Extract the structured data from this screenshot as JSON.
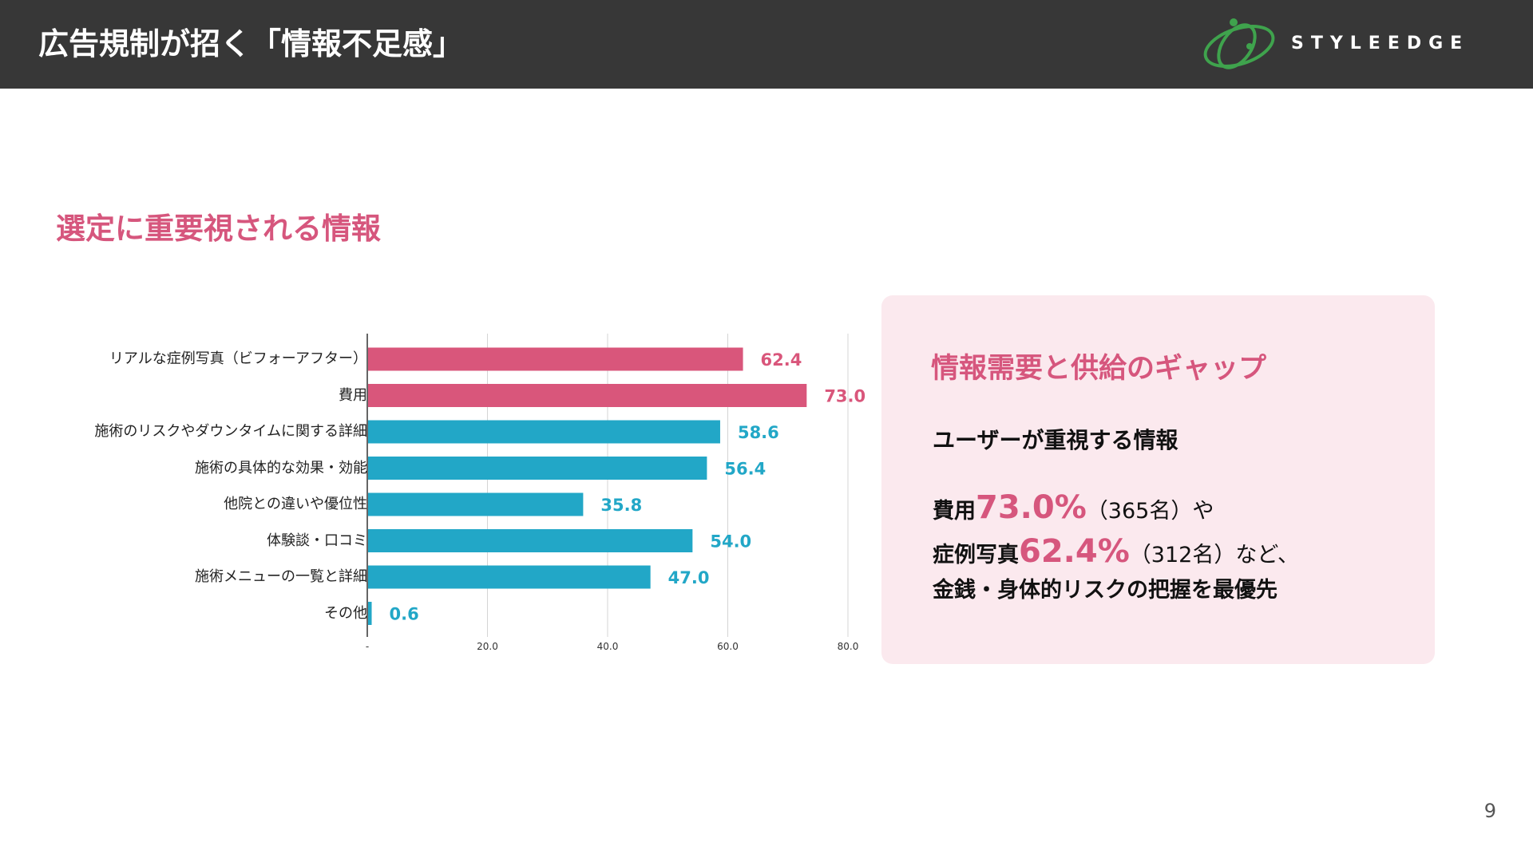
{
  "header": {
    "title": "広告規制が招く「情報不足感」",
    "logo_text": "STYLEEDGE",
    "colors": {
      "bar_bg": "#373737",
      "logo_green": "#3fa34d"
    }
  },
  "section": {
    "title": "選定に重要視される情報"
  },
  "chart_data": {
    "type": "bar",
    "orientation": "horizontal",
    "categories": [
      "リアルな症例写真（ビフォーアフター）",
      "費用",
      "施術のリスクやダウンタイムに関する詳細",
      "施術の具体的な効果・効能",
      "他院との違いや優位性",
      "体験談・口コミ",
      "施術メニューの一覧と詳細",
      "その他"
    ],
    "values": [
      62.4,
      73.0,
      58.6,
      56.4,
      35.8,
      54.0,
      47.0,
      0.6
    ],
    "value_labels": [
      "62.4",
      "73.0",
      "58.6",
      "56.4",
      "35.8",
      "54.0",
      "47.0",
      "0.6"
    ],
    "bar_colors": [
      "#d9567b",
      "#d9567b",
      "#22a7c7",
      "#22a7c7",
      "#22a7c7",
      "#22a7c7",
      "#22a7c7",
      "#22a7c7"
    ],
    "xlim": [
      0,
      80
    ],
    "x_ticks": [
      0,
      20,
      40,
      60,
      80
    ],
    "x_tick_labels": [
      "-",
      "20.0",
      "40.0",
      "60.0",
      "80.0"
    ],
    "grid": true,
    "title": "",
    "xlabel": "",
    "ylabel": ""
  },
  "panel": {
    "title": "情報需要と供給のギャップ",
    "subtitle": "ユーザーが重視する情報",
    "line1": {
      "prefix": "費用",
      "big": "73.0%",
      "suffix": "（365名）や"
    },
    "line2": {
      "prefix": "症例写真",
      "big": "62.4%",
      "suffix": "（312名）など、"
    },
    "line3": "金銭・身体的リスクの把握を最優先",
    "colors": {
      "background": "#fbe9ee",
      "accent": "#d6567d"
    }
  },
  "page_number": "9"
}
